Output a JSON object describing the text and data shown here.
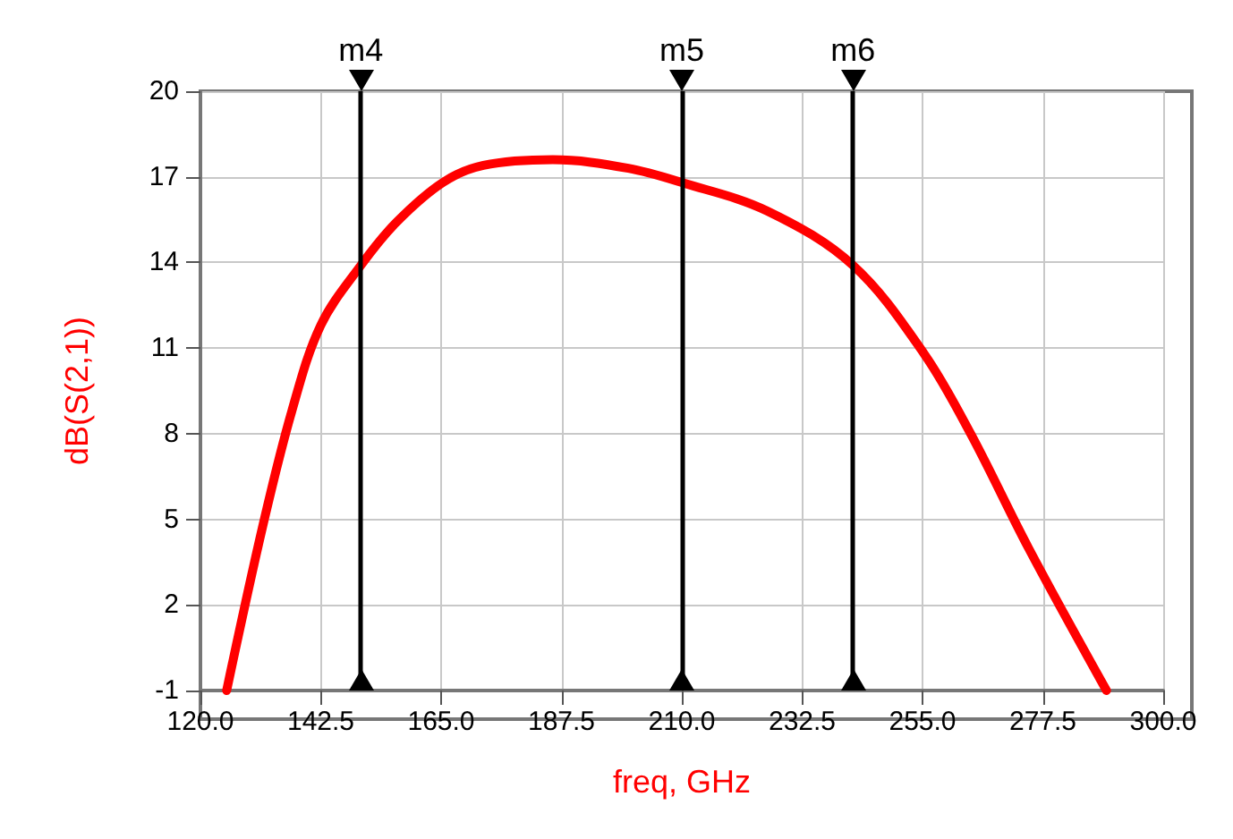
{
  "chart_data": {
    "type": "line",
    "xlabel": "freq, GHz",
    "ylabel": "dB(S(2,1))",
    "x": [
      124.9,
      131.7,
      137.1,
      142.5,
      150,
      156.6,
      165.3,
      172.9,
      185.9,
      200,
      210,
      226,
      242,
      255.3,
      264,
      274.8,
      289.4
    ],
    "series": [
      {
        "color": "#ff0000",
        "values": [
          -1,
          4.8,
          8.8,
          11.8,
          13.9,
          15.4,
          16.8,
          17.4,
          17.6,
          17.3,
          16.8,
          15.8,
          13.9,
          10.8,
          8.0,
          4.0,
          -1
        ]
      }
    ],
    "xlim": [
      120,
      300
    ],
    "xticks": [
      {
        "value": 120,
        "label": "120.0"
      },
      {
        "value": 142.5,
        "label": "142.5"
      },
      {
        "value": 165,
        "label": "165.0"
      },
      {
        "value": 187.5,
        "label": "187.5"
      },
      {
        "value": 210,
        "label": "210.0"
      },
      {
        "value": 232.5,
        "label": "232.5"
      },
      {
        "value": 255,
        "label": "255.0"
      },
      {
        "value": 277.5,
        "label": "277.5"
      },
      {
        "value": 300,
        "label": "300.0"
      }
    ],
    "ylim": [
      -1,
      20
    ],
    "yticks": [
      -1,
      2,
      5,
      8,
      11,
      14,
      17,
      20
    ],
    "grid": true,
    "marker": "none",
    "line_style": "solid",
    "ref_lines": [
      {
        "axis": "x",
        "value": 150,
        "label": "m4",
        "color": "#000000"
      },
      {
        "axis": "x",
        "value": 210,
        "label": "m5",
        "color": "#000000"
      },
      {
        "axis": "x",
        "value": 242,
        "label": "m6",
        "color": "#000000"
      }
    ]
  }
}
